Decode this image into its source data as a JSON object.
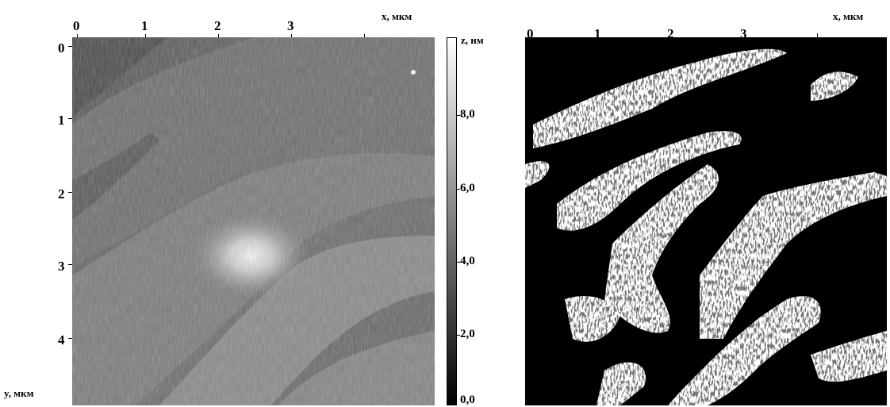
{
  "afm_panel": {
    "x_ticks": [
      "0",
      "1",
      "2",
      "3"
    ],
    "y_ticks": [
      "0",
      "1",
      "2",
      "3",
      "4"
    ],
    "x_axis_label": "x, мкм",
    "y_axis_label": "y, мкм"
  },
  "colorbar": {
    "label": "z, нм",
    "ticks": [
      "8,0",
      "6,0",
      "4,0",
      "2,0",
      "0,0"
    ]
  },
  "binary_panel": {
    "x_ticks": [
      "0",
      "1",
      "2",
      "3"
    ],
    "x_axis_label": "x, мкм"
  }
}
